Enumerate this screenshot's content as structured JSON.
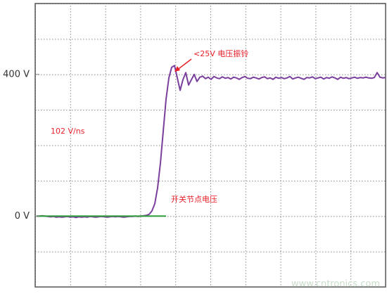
{
  "chart_data": {
    "type": "line",
    "ylim": [
      -200,
      600
    ],
    "yticks": [
      {
        "value": 0,
        "label": "0 V"
      },
      {
        "value": 400,
        "label": "400 V"
      }
    ],
    "series": [
      {
        "color": "#7a3f9d",
        "values": [
          0,
          0,
          1,
          0,
          -1,
          -2,
          -1,
          -3,
          -2,
          -3,
          -2,
          -1,
          -3,
          -2,
          -4,
          -2,
          -3,
          -2,
          -3,
          -1,
          -2,
          -3,
          -2,
          -1,
          -2,
          -3,
          -2,
          -1,
          -2,
          -1,
          -2,
          -3,
          -2,
          -1,
          -1,
          0,
          -1,
          0,
          1,
          2,
          5,
          15,
          35,
          80,
          150,
          240,
          330,
          390,
          420,
          425,
          390,
          355,
          385,
          405,
          370,
          385,
          400,
          380,
          392,
          395,
          388,
          392,
          386,
          394,
          390,
          388,
          393,
          389,
          391,
          387,
          392,
          390,
          386,
          391,
          394,
          389,
          388,
          392,
          390,
          387,
          391,
          393,
          388,
          390,
          386,
          392,
          389,
          391,
          388,
          390,
          394,
          387,
          390,
          392,
          389,
          386,
          391,
          390,
          393,
          388,
          390,
          392,
          387,
          391,
          389,
          393,
          390,
          386,
          392,
          389,
          391,
          388,
          390,
          392,
          389,
          391,
          390,
          392,
          390,
          389,
          391,
          405,
          392,
          390,
          391
        ]
      },
      {
        "color": "#2e9e3a",
        "values": [
          0,
          0,
          0,
          0,
          0,
          0,
          0,
          0,
          0,
          0,
          0,
          0,
          0,
          0,
          0,
          0,
          0,
          0,
          0,
          0,
          0,
          0,
          0,
          0,
          0,
          0,
          0,
          0,
          0,
          0,
          0,
          0,
          0,
          0,
          0,
          0,
          0,
          0,
          0,
          0,
          0,
          0,
          0,
          0,
          0,
          0,
          0,
          null,
          null,
          null,
          null,
          null,
          null,
          null,
          null,
          null,
          null,
          null,
          null,
          null,
          null,
          null,
          null,
          null,
          null,
          null,
          null,
          null,
          null,
          null,
          null,
          null,
          null,
          null,
          null,
          null,
          null,
          null,
          null,
          null,
          null,
          null,
          null,
          null,
          null,
          null,
          null,
          null,
          null,
          null,
          null,
          null,
          null,
          null,
          null,
          null,
          null,
          null,
          null,
          null,
          null,
          null,
          null,
          null,
          null,
          null,
          null,
          null,
          null,
          null,
          null,
          null,
          null,
          null,
          null,
          null,
          null,
          null,
          null,
          null,
          null,
          null,
          null,
          null,
          null
        ]
      }
    ],
    "annotations": {
      "slew_rate": "102 V/ns",
      "ringing": "<25V 电压振铃",
      "node": "开关节点电压",
      "watermark": "www.cntronics.com"
    }
  }
}
